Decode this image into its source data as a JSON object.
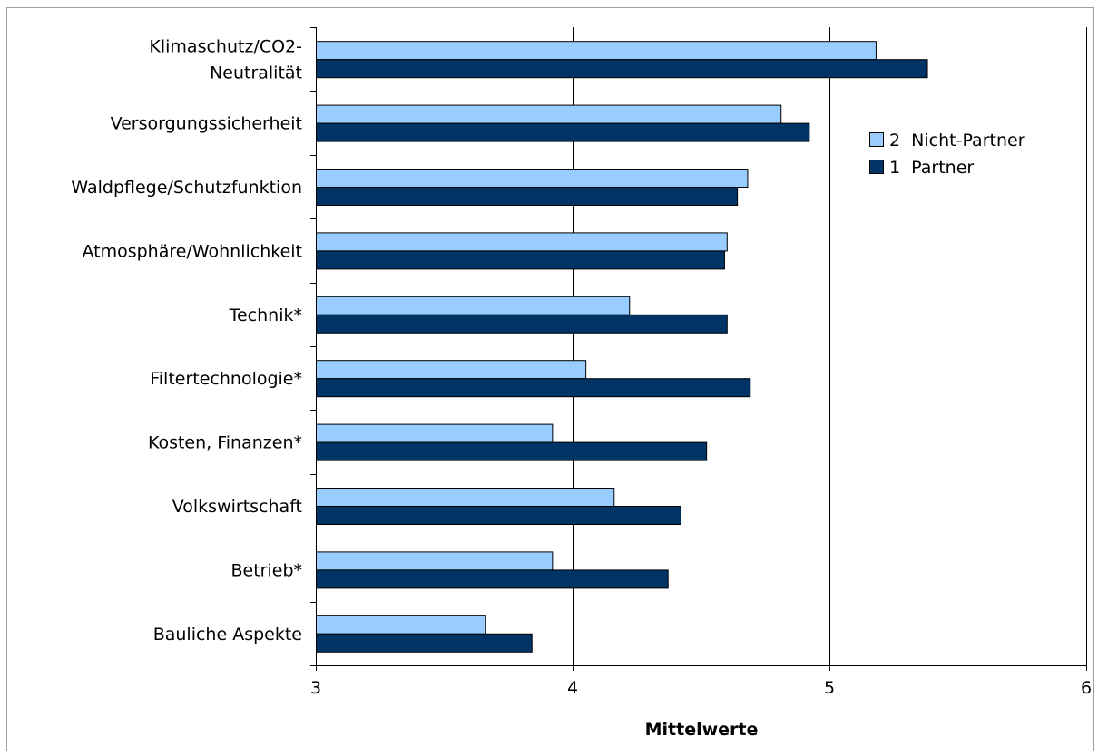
{
  "chart_data": {
    "type": "bar",
    "orientation": "horizontal",
    "title": "",
    "xlabel": "Mittelwerte",
    "ylabel": "",
    "xlim": [
      3,
      6
    ],
    "xticks": [
      "3",
      "4",
      "5",
      "6"
    ],
    "grid": "vertical",
    "legend_position": "right",
    "categories": [
      [
        "Klimaschutz/CO2-",
        "Neutralität"
      ],
      [
        "Versorgungssicherheit"
      ],
      [
        "Waldpflege/Schutzfunktion"
      ],
      [
        "Atmosphäre/Wohnlichkeit"
      ],
      [
        "Technik*"
      ],
      [
        "Filtertechnologie*"
      ],
      [
        "Kosten, Finanzen*"
      ],
      [
        "Volkswirtschaft"
      ],
      [
        "Betrieb*"
      ],
      [
        "Bauliche Aspekte"
      ]
    ],
    "series": [
      {
        "name": "2  Nicht-Partner",
        "color": "#99ccff",
        "values": [
          5.18,
          4.81,
          4.68,
          4.6,
          4.22,
          4.05,
          3.92,
          4.16,
          3.92,
          3.66
        ]
      },
      {
        "name": "1  Partner",
        "color": "#003366",
        "values": [
          5.38,
          4.92,
          4.64,
          4.59,
          4.6,
          4.69,
          4.52,
          4.42,
          4.37,
          3.84
        ]
      }
    ]
  }
}
